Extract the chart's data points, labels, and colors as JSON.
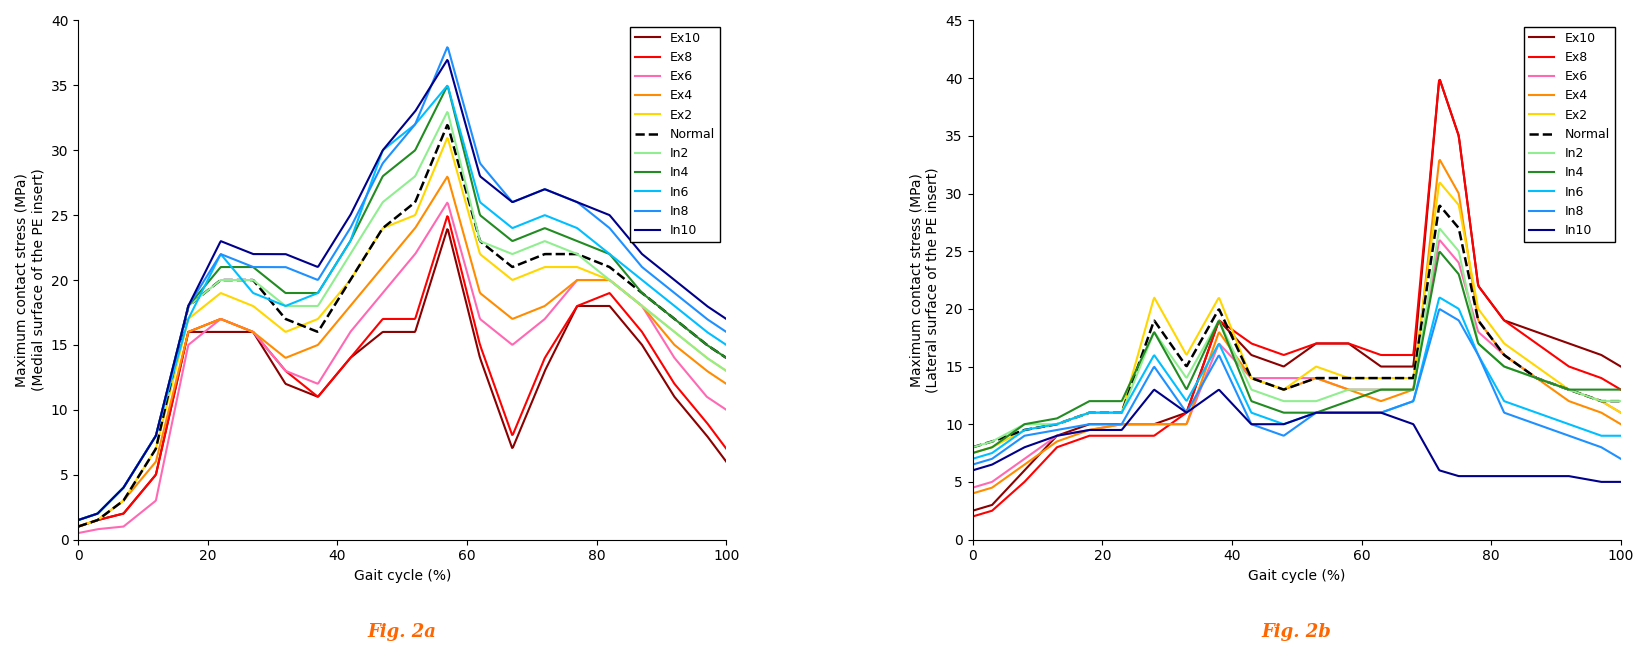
{
  "fig2a": {
    "title": "Fig. 2a",
    "ylabel": "Maximum contact stress (MPa)\n(Medial surface of the PE insert)",
    "xlabel": "Gait cycle (%)",
    "ylim": [
      0,
      40
    ],
    "xlim": [
      0,
      100
    ],
    "yticks": [
      0,
      5,
      10,
      15,
      20,
      25,
      30,
      35,
      40
    ],
    "xticks": [
      0,
      20,
      40,
      60,
      80,
      100
    ],
    "series": {
      "In10": {
        "color": "#00008B",
        "lw": 1.5,
        "ls": "-",
        "x": [
          0,
          3,
          7,
          12,
          17,
          22,
          27,
          32,
          37,
          42,
          47,
          52,
          57,
          62,
          67,
          72,
          77,
          82,
          87,
          92,
          97,
          100
        ],
        "y": [
          1.5,
          2,
          4,
          8,
          18,
          23,
          22,
          22,
          21,
          25,
          30,
          33,
          37,
          28,
          26,
          27,
          26,
          25,
          22,
          20,
          18,
          17
        ]
      },
      "In8": {
        "color": "#1E90FF",
        "lw": 1.5,
        "ls": "-",
        "x": [
          0,
          3,
          7,
          12,
          17,
          22,
          27,
          32,
          37,
          42,
          47,
          52,
          57,
          62,
          67,
          72,
          77,
          82,
          87,
          92,
          97,
          100
        ],
        "y": [
          1.5,
          2,
          4,
          8,
          18,
          22,
          21,
          21,
          20,
          24,
          29,
          32,
          38,
          29,
          26,
          27,
          26,
          24,
          21,
          19,
          17,
          16
        ]
      },
      "In6": {
        "color": "#00BFFF",
        "lw": 1.5,
        "ls": "-",
        "x": [
          0,
          3,
          7,
          12,
          17,
          22,
          27,
          32,
          37,
          42,
          47,
          52,
          57,
          62,
          67,
          72,
          77,
          82,
          87,
          92,
          97,
          100
        ],
        "y": [
          1.5,
          2,
          4,
          8,
          17,
          22,
          19,
          18,
          19,
          23,
          30,
          32,
          35,
          26,
          24,
          25,
          24,
          22,
          20,
          18,
          16,
          15
        ]
      },
      "In4": {
        "color": "#228B22",
        "lw": 1.5,
        "ls": "-",
        "x": [
          0,
          3,
          7,
          12,
          17,
          22,
          27,
          32,
          37,
          42,
          47,
          52,
          57,
          62,
          67,
          72,
          77,
          82,
          87,
          92,
          97,
          100
        ],
        "y": [
          1.5,
          2,
          4,
          8,
          18,
          21,
          21,
          19,
          19,
          23,
          28,
          30,
          35,
          25,
          23,
          24,
          23,
          22,
          19,
          17,
          15,
          14
        ]
      },
      "In2": {
        "color": "#90EE90",
        "lw": 1.5,
        "ls": "-",
        "x": [
          0,
          3,
          7,
          12,
          17,
          22,
          27,
          32,
          37,
          42,
          47,
          52,
          57,
          62,
          67,
          72,
          77,
          82,
          87,
          92,
          97,
          100
        ],
        "y": [
          1.5,
          2,
          4,
          8,
          18,
          20,
          20,
          18,
          18,
          22,
          26,
          28,
          33,
          23,
          22,
          23,
          22,
          20,
          18,
          16,
          14,
          13
        ]
      },
      "Normal": {
        "color": "#000000",
        "lw": 1.8,
        "ls": "--",
        "x": [
          0,
          3,
          7,
          12,
          17,
          22,
          27,
          32,
          37,
          42,
          47,
          52,
          57,
          62,
          67,
          72,
          77,
          82,
          87,
          92,
          97,
          100
        ],
        "y": [
          1,
          1.5,
          3,
          7,
          18,
          20,
          20,
          17,
          16,
          20,
          24,
          26,
          32,
          23,
          21,
          22,
          22,
          21,
          19,
          17,
          15,
          14
        ]
      },
      "Ex2": {
        "color": "#FFD700",
        "lw": 1.5,
        "ls": "-",
        "x": [
          0,
          3,
          7,
          12,
          17,
          22,
          27,
          32,
          37,
          42,
          47,
          52,
          57,
          62,
          67,
          72,
          77,
          82,
          87,
          92,
          97,
          100
        ],
        "y": [
          1,
          1.5,
          3,
          7,
          17,
          19,
          18,
          16,
          17,
          20,
          24,
          25,
          31,
          22,
          20,
          21,
          21,
          20,
          18,
          16,
          14,
          13
        ]
      },
      "Ex4": {
        "color": "#FF8C00",
        "lw": 1.5,
        "ls": "-",
        "x": [
          0,
          3,
          7,
          12,
          17,
          22,
          27,
          32,
          37,
          42,
          47,
          52,
          57,
          62,
          67,
          72,
          77,
          82,
          87,
          92,
          97,
          100
        ],
        "y": [
          1,
          1.5,
          3,
          6,
          16,
          17,
          16,
          14,
          15,
          18,
          21,
          24,
          28,
          19,
          17,
          18,
          20,
          20,
          18,
          15,
          13,
          12
        ]
      },
      "Ex6": {
        "color": "#FF69B4",
        "lw": 1.5,
        "ls": "-",
        "x": [
          0,
          3,
          7,
          12,
          17,
          22,
          27,
          32,
          37,
          42,
          47,
          52,
          57,
          62,
          67,
          72,
          77,
          82,
          87,
          92,
          97,
          100
        ],
        "y": [
          0.5,
          0.8,
          1,
          3,
          15,
          17,
          16,
          13,
          12,
          16,
          19,
          22,
          26,
          17,
          15,
          17,
          20,
          20,
          18,
          14,
          11,
          10
        ]
      },
      "Ex8": {
        "color": "#FF0000",
        "lw": 1.5,
        "ls": "-",
        "x": [
          0,
          3,
          7,
          12,
          17,
          22,
          27,
          32,
          37,
          42,
          47,
          52,
          57,
          62,
          67,
          72,
          77,
          82,
          87,
          92,
          97,
          100
        ],
        "y": [
          1,
          1.5,
          2,
          5,
          16,
          17,
          16,
          13,
          11,
          14,
          17,
          17,
          25,
          15,
          8,
          14,
          18,
          19,
          16,
          12,
          9,
          7
        ]
      },
      "Ex10": {
        "color": "#8B0000",
        "lw": 1.5,
        "ls": "-",
        "x": [
          0,
          3,
          7,
          12,
          17,
          22,
          27,
          32,
          37,
          42,
          47,
          52,
          57,
          62,
          67,
          72,
          77,
          82,
          87,
          92,
          97,
          100
        ],
        "y": [
          1,
          1.5,
          2,
          5,
          16,
          16,
          16,
          12,
          11,
          14,
          16,
          16,
          24,
          14,
          7,
          13,
          18,
          18,
          15,
          11,
          8,
          6
        ]
      }
    },
    "legend_order": [
      "Ex10",
      "Ex8",
      "Ex6",
      "Ex4",
      "Ex2",
      "Normal",
      "In2",
      "In4",
      "In6",
      "In8",
      "In10"
    ]
  },
  "fig2b": {
    "title": "Fig. 2b",
    "ylabel": "Maximum contact stress (MPa)\n(Lateral surface of the PE insert)",
    "xlabel": "Gait cycle (%)",
    "ylim": [
      0,
      45
    ],
    "xlim": [
      0,
      100
    ],
    "yticks": [
      0,
      5,
      10,
      15,
      20,
      25,
      30,
      35,
      40,
      45
    ],
    "xticks": [
      0,
      20,
      40,
      60,
      80,
      100
    ],
    "series": {
      "Ex10": {
        "color": "#8B0000",
        "lw": 1.5,
        "ls": "-",
        "x": [
          0,
          3,
          8,
          13,
          18,
          23,
          28,
          33,
          38,
          43,
          48,
          53,
          58,
          63,
          68,
          72,
          75,
          78,
          82,
          87,
          92,
          97,
          100
        ],
        "y": [
          2.5,
          3,
          6,
          9,
          10,
          10,
          10,
          11,
          19,
          16,
          15,
          17,
          17,
          15,
          15,
          40,
          35,
          22,
          19,
          18,
          17,
          16,
          15
        ]
      },
      "Ex8": {
        "color": "#FF0000",
        "lw": 1.5,
        "ls": "-",
        "x": [
          0,
          3,
          8,
          13,
          18,
          23,
          28,
          33,
          38,
          43,
          48,
          53,
          58,
          63,
          68,
          72,
          75,
          78,
          82,
          87,
          92,
          97,
          100
        ],
        "y": [
          2,
          2.5,
          5,
          8,
          9,
          9,
          9,
          11,
          19,
          17,
          16,
          17,
          17,
          16,
          16,
          40,
          35,
          22,
          19,
          17,
          15,
          14,
          13
        ]
      },
      "Ex6": {
        "color": "#FF69B4",
        "lw": 1.5,
        "ls": "-",
        "x": [
          0,
          3,
          8,
          13,
          18,
          23,
          28,
          33,
          38,
          43,
          48,
          53,
          58,
          63,
          68,
          72,
          75,
          78,
          82,
          87,
          92,
          97,
          100
        ],
        "y": [
          4.5,
          5,
          7,
          9,
          9.5,
          10,
          10,
          10,
          17,
          14,
          14,
          14,
          13,
          13,
          13,
          26,
          24,
          18,
          16,
          14,
          13,
          12,
          11
        ]
      },
      "Ex4": {
        "color": "#FF8C00",
        "lw": 1.5,
        "ls": "-",
        "x": [
          0,
          3,
          8,
          13,
          18,
          23,
          28,
          33,
          38,
          43,
          48,
          53,
          58,
          63,
          68,
          72,
          75,
          78,
          82,
          87,
          92,
          97,
          100
        ],
        "y": [
          4,
          4.5,
          6.5,
          8.5,
          9.5,
          10,
          10,
          10,
          18,
          14,
          13,
          14,
          13,
          12,
          13,
          33,
          30,
          19,
          16,
          14,
          12,
          11,
          10
        ]
      },
      "Ex2": {
        "color": "#FFD700",
        "lw": 1.5,
        "ls": "-",
        "x": [
          0,
          3,
          8,
          13,
          18,
          23,
          28,
          33,
          38,
          43,
          48,
          53,
          58,
          63,
          68,
          72,
          75,
          78,
          82,
          87,
          92,
          97,
          100
        ],
        "y": [
          7.5,
          8,
          9.5,
          10,
          11,
          11,
          21,
          16,
          21,
          14,
          13,
          15,
          14,
          14,
          14,
          31,
          29,
          20,
          17,
          15,
          13,
          12,
          11
        ]
      },
      "Normal": {
        "color": "#000000",
        "lw": 1.8,
        "ls": "--",
        "x": [
          0,
          3,
          8,
          13,
          18,
          23,
          28,
          33,
          38,
          43,
          48,
          53,
          58,
          63,
          68,
          72,
          75,
          78,
          82,
          87,
          92,
          97,
          100
        ],
        "y": [
          8,
          8.5,
          9.5,
          10,
          11,
          11,
          19,
          15,
          20,
          14,
          13,
          14,
          14,
          14,
          14,
          29,
          27,
          19,
          16,
          14,
          13,
          12,
          12
        ]
      },
      "In2": {
        "color": "#90EE90",
        "lw": 1.5,
        "ls": "-",
        "x": [
          0,
          3,
          8,
          13,
          18,
          23,
          28,
          33,
          38,
          43,
          48,
          53,
          58,
          63,
          68,
          72,
          75,
          78,
          82,
          87,
          92,
          97,
          100
        ],
        "y": [
          8,
          8.5,
          10,
          10,
          11,
          11,
          18,
          14,
          19,
          13,
          12,
          12,
          13,
          13,
          13,
          27,
          25,
          17,
          15,
          14,
          13,
          12,
          12
        ]
      },
      "In4": {
        "color": "#228B22",
        "lw": 1.5,
        "ls": "-",
        "x": [
          0,
          3,
          8,
          13,
          18,
          23,
          28,
          33,
          38,
          43,
          48,
          53,
          58,
          63,
          68,
          72,
          75,
          78,
          82,
          87,
          92,
          97,
          100
        ],
        "y": [
          7.5,
          8,
          10,
          10.5,
          12,
          12,
          18,
          13,
          19,
          12,
          11,
          11,
          12,
          13,
          13,
          25,
          23,
          17,
          15,
          14,
          13,
          13,
          13
        ]
      },
      "In6": {
        "color": "#00BFFF",
        "lw": 1.5,
        "ls": "-",
        "x": [
          0,
          3,
          8,
          13,
          18,
          23,
          28,
          33,
          38,
          43,
          48,
          53,
          58,
          63,
          68,
          72,
          75,
          78,
          82,
          87,
          92,
          97,
          100
        ],
        "y": [
          7,
          7.5,
          9.5,
          10,
          11,
          11,
          16,
          12,
          17,
          11,
          10,
          11,
          11,
          11,
          12,
          21,
          20,
          16,
          12,
          11,
          10,
          9,
          9
        ]
      },
      "In8": {
        "color": "#1E90FF",
        "lw": 1.5,
        "ls": "-",
        "x": [
          0,
          3,
          8,
          13,
          18,
          23,
          28,
          33,
          38,
          43,
          48,
          53,
          58,
          63,
          68,
          72,
          75,
          78,
          82,
          87,
          92,
          97,
          100
        ],
        "y": [
          6.5,
          7,
          9,
          9.5,
          10,
          10,
          15,
          11,
          16,
          10,
          9,
          11,
          11,
          11,
          12,
          20,
          19,
          16,
          11,
          10,
          9,
          8,
          7
        ]
      },
      "In10": {
        "color": "#00008B",
        "lw": 1.5,
        "ls": "-",
        "x": [
          0,
          3,
          8,
          13,
          18,
          23,
          28,
          33,
          38,
          43,
          48,
          53,
          58,
          63,
          68,
          72,
          75,
          78,
          82,
          87,
          92,
          97,
          100
        ],
        "y": [
          6,
          6.5,
          8,
          9,
          9.5,
          9.5,
          13,
          11,
          13,
          10,
          10,
          11,
          11,
          11,
          10,
          6,
          5.5,
          5.5,
          5.5,
          5.5,
          5.5,
          5,
          5
        ]
      }
    },
    "legend_order": [
      "Ex10",
      "Ex8",
      "Ex6",
      "Ex4",
      "Ex2",
      "Normal",
      "In2",
      "In4",
      "In6",
      "In8",
      "In10"
    ]
  },
  "title_color": "#FF6600",
  "title_fontsize": 13,
  "label_fontsize": 10,
  "tick_fontsize": 10,
  "legend_fontsize": 9
}
